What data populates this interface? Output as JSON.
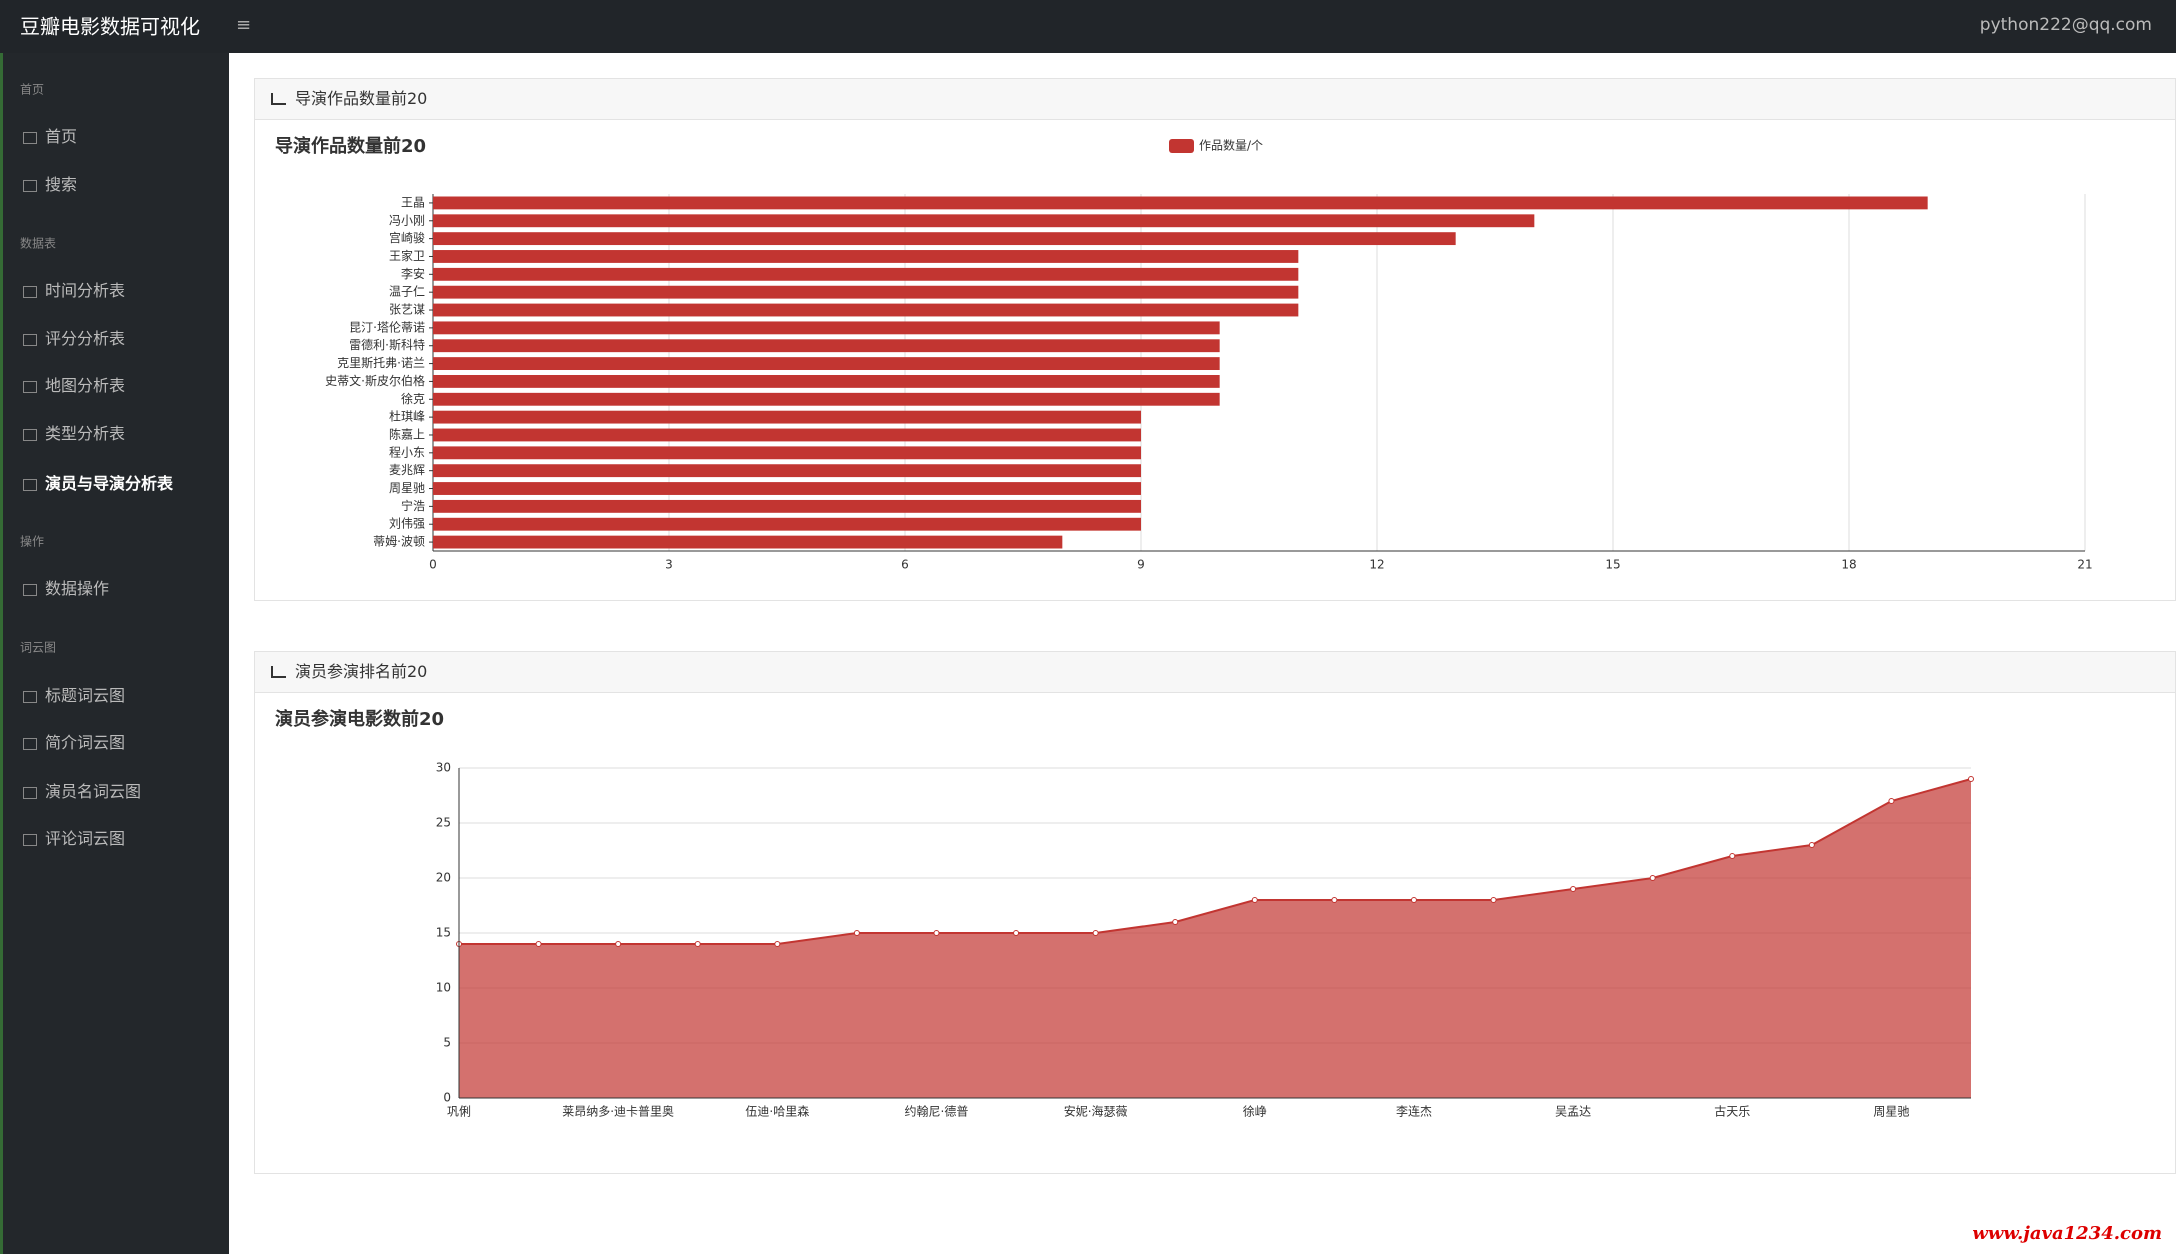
{
  "header": {
    "title": "豆瓣电影数据可视化",
    "user": "python222@qq.com"
  },
  "sidebar": {
    "sections": [
      {
        "label": "首页",
        "items": [
          "首页",
          "搜索"
        ]
      },
      {
        "label": "数据表",
        "items": [
          "时间分析表",
          "评分分析表",
          "地图分析表",
          "类型分析表",
          "演员与导演分析表"
        ]
      },
      {
        "label": "操作",
        "items": [
          "数据操作"
        ]
      },
      {
        "label": "词云图",
        "items": [
          "标题词云图",
          "简介词云图",
          "演员名词云图",
          "评论词云图"
        ]
      }
    ]
  },
  "panels": [
    {
      "title": "导演作品数量前20"
    },
    {
      "title": "演员参演排名前20"
    }
  ],
  "chart_data": [
    {
      "type": "bar",
      "orientation": "horizontal",
      "title": "导演作品数量前20",
      "categories": [
        "王晶",
        "冯小刚",
        "宫崎骏",
        "王家卫",
        "李安",
        "温子仁",
        "张艺谋",
        "昆汀·塔伦蒂诺",
        "雷德利·斯科特",
        "克里斯托弗·诺兰",
        "史蒂文·斯皮尔伯格",
        "徐克",
        "杜琪峰",
        "陈嘉上",
        "程小东",
        "麦兆辉",
        "周星驰",
        "宁浩",
        "刘伟强",
        "蒂姆·波顿"
      ],
      "series": [
        {
          "name": "作品数量/个",
          "color": "#c23531",
          "values": [
            19,
            14,
            13,
            11,
            11,
            11,
            11,
            10,
            10,
            10,
            10,
            10,
            9,
            9,
            9,
            9,
            9,
            9,
            9,
            8
          ]
        }
      ],
      "legend": "top",
      "xlim": [
        0,
        21
      ],
      "xticks": [
        0,
        3,
        6,
        9,
        12,
        15,
        18,
        21
      ],
      "grid": true
    },
    {
      "type": "line",
      "area": true,
      "title": "演员参演电影数前20",
      "categories": [
        "巩俐",
        null,
        "莱昂纳多·迪卡普里奥",
        null,
        "伍迪·哈里森",
        null,
        "约翰尼·德普",
        null,
        "安妮·海瑟薇",
        null,
        "徐峥",
        null,
        "李连杰",
        null,
        "吴孟达",
        null,
        "古天乐",
        null,
        "周星驰",
        null
      ],
      "series": [
        {
          "color": "#c23531",
          "values": [
            14,
            14,
            14,
            14,
            14,
            15,
            15,
            15,
            15,
            16,
            18,
            18,
            18,
            18,
            19,
            20,
            22,
            23,
            27,
            29
          ]
        }
      ],
      "ylim": [
        0,
        30
      ],
      "yticks": [
        0,
        5,
        10,
        15,
        20,
        25,
        30
      ],
      "grid": true
    }
  ],
  "watermark": "www.java1234.com"
}
